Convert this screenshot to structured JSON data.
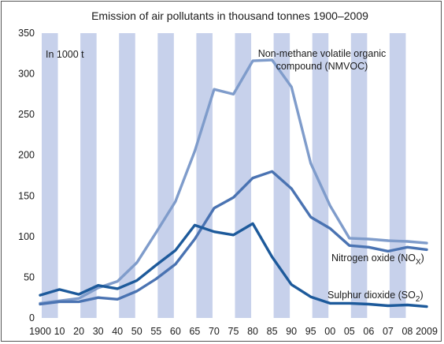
{
  "chart_data": {
    "type": "line",
    "title": "Emission of air pollutants in thousand tonnes 1900–2009",
    "unit_label": "In 1000 t",
    "categories": [
      "1900",
      "10",
      "20",
      "30",
      "40",
      "50",
      "55",
      "60",
      "65",
      "70",
      "75",
      "80",
      "85",
      "90",
      "95",
      "00",
      "05",
      "06",
      "07",
      "08",
      "2009"
    ],
    "ylim": [
      0,
      350
    ],
    "yticks": [
      "0",
      "50",
      "100",
      "150",
      "200",
      "250",
      "300",
      "350"
    ],
    "grid": "alternating vertical bands",
    "series": [
      {
        "name": "Non-methane volatile organic compound (NMVOC)",
        "label_lines": [
          "Non-methane volatile organic",
          "compound (NMVOC)"
        ],
        "color": "#7f9ccb",
        "values": [
          18,
          21,
          24,
          37,
          45,
          68,
          105,
          143,
          205,
          281,
          275,
          316,
          317,
          284,
          190,
          138,
          98,
          97,
          95,
          94,
          92
        ]
      },
      {
        "name": "Nitrogen oxide (NOX)",
        "label_main": "Nitrogen oxide (NO",
        "label_sub": "X",
        "label_end": ")",
        "color": "#4a73b2",
        "values": [
          17,
          20,
          20,
          25,
          23,
          33,
          48,
          66,
          97,
          135,
          148,
          172,
          180,
          159,
          124,
          110,
          89,
          87,
          82,
          87,
          84
        ]
      },
      {
        "name": "Sulphur dioxide (SO2)",
        "label_main": "Sulphur dioxide (SO",
        "label_sub": "2",
        "label_end": ")",
        "color": "#1d5a9b",
        "values": [
          28,
          35,
          29,
          40,
          36,
          46,
          65,
          83,
          114,
          106,
          102,
          116,
          75,
          41,
          26,
          18,
          18,
          17,
          15,
          16,
          14
        ]
      }
    ]
  }
}
